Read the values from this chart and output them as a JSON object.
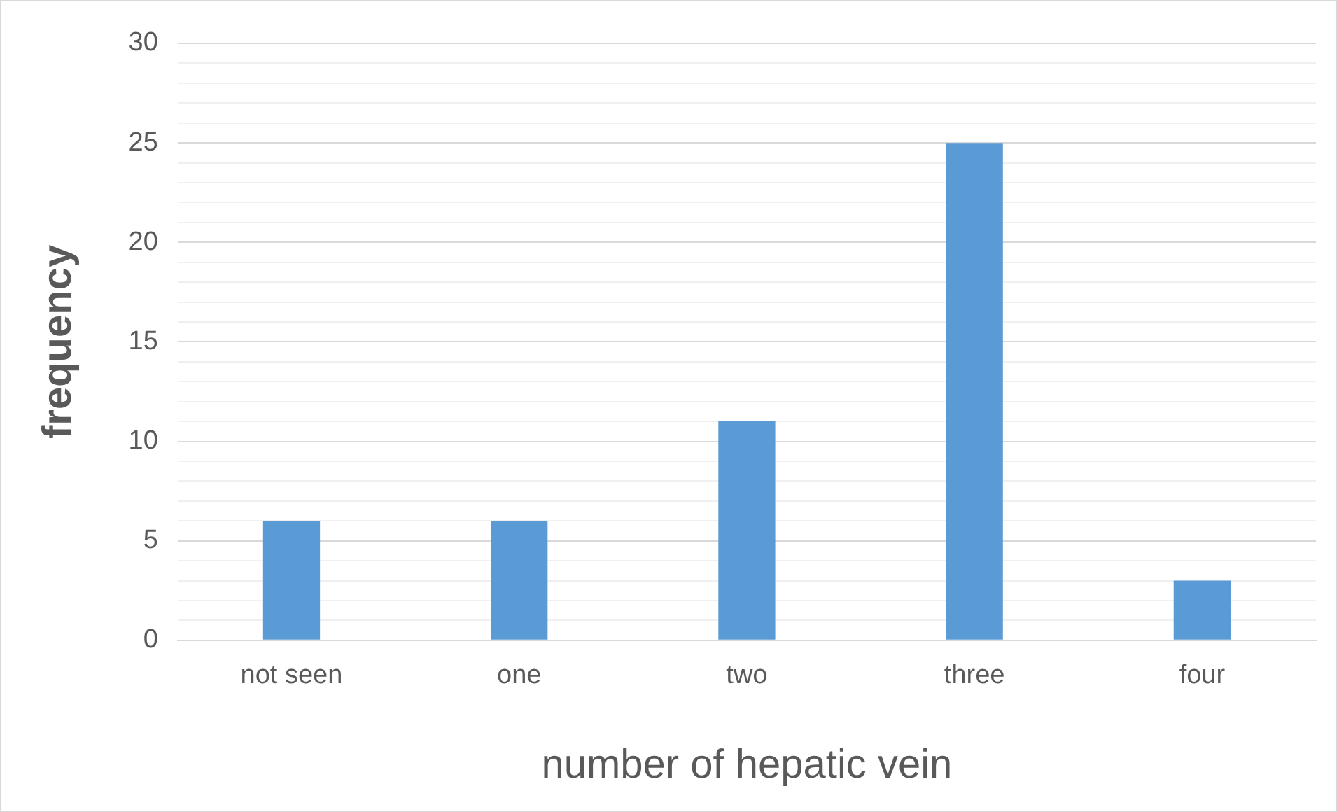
{
  "chart_data": {
    "type": "bar",
    "xlabel": "number of hepatic vein",
    "ylabel": "frequency",
    "categories": [
      "not seen",
      "one",
      "two",
      "three",
      "four"
    ],
    "values": [
      6,
      6,
      11,
      25,
      3
    ],
    "color": "#5b9bd5",
    "ylim": [
      0,
      30
    ],
    "yticks": [
      0,
      {
        "value": 1,
        "label": null
      },
      {
        "value": 2,
        "label": null
      },
      {
        "value": 3,
        "label": null
      },
      {
        "value": 4,
        "label": null
      },
      5,
      {
        "value": 6,
        "label": null
      },
      {
        "value": 7,
        "label": null
      },
      {
        "value": 8,
        "label": null
      },
      {
        "value": 9,
        "label": null
      },
      10,
      {
        "value": 11,
        "label": null
      },
      {
        "value": 12,
        "label": null
      },
      {
        "value": 13,
        "label": null
      },
      {
        "value": 14,
        "label": null
      },
      15,
      {
        "value": 16,
        "label": null
      },
      {
        "value": 17,
        "label": null
      },
      {
        "value": 18,
        "label": null
      },
      {
        "value": 19,
        "label": null
      },
      20,
      {
        "value": 21,
        "label": null
      },
      {
        "value": 22,
        "label": null
      },
      {
        "value": 23,
        "label": null
      },
      {
        "value": 24,
        "label": null
      },
      25,
      {
        "value": 26,
        "label": null
      },
      {
        "value": 27,
        "label": null
      },
      {
        "value": 28,
        "label": null
      },
      {
        "value": 29,
        "label": null
      },
      30
    ],
    "grid": "y"
  }
}
